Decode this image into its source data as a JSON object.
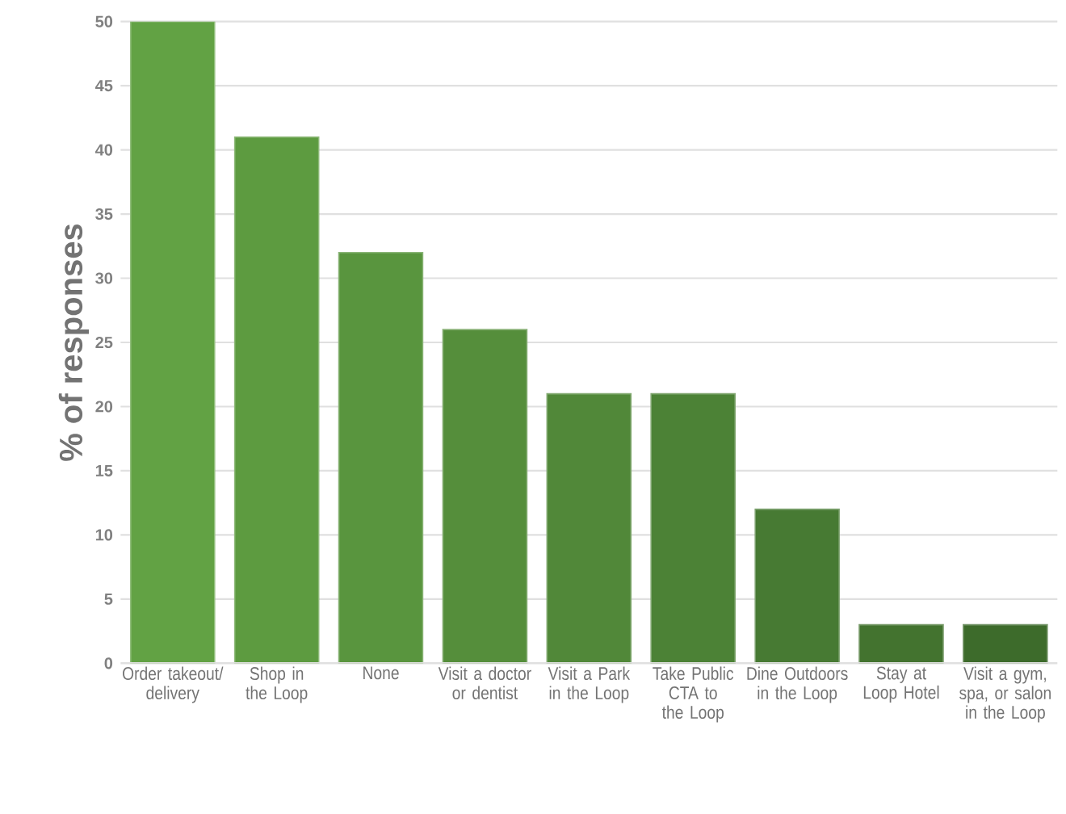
{
  "chart_data": {
    "type": "bar",
    "ylabel": "% of responses",
    "categories": [
      "Order takeout/ delivery",
      "Shop in the Loop",
      "None",
      "Visit a doctor or dentist",
      "Visit a Park in the Loop",
      "Take Public CTA to the Loop",
      "Dine Outdoors in the Loop",
      "Stay at Loop Hotel",
      "Visit a gym, spa, or salon in the Loop"
    ],
    "values": [
      50,
      41,
      32,
      26,
      21,
      21,
      12,
      3,
      3
    ],
    "colors": [
      "#62a244",
      "#5d9b40",
      "#59953e",
      "#558e3b",
      "#518839",
      "#4c8236",
      "#477a33",
      "#43732f",
      "#3d6b2b"
    ],
    "ylim": [
      0,
      50
    ],
    "yticks": [
      0,
      5,
      10,
      15,
      20,
      25,
      30,
      35,
      40,
      45,
      50
    ],
    "grid": "y"
  }
}
